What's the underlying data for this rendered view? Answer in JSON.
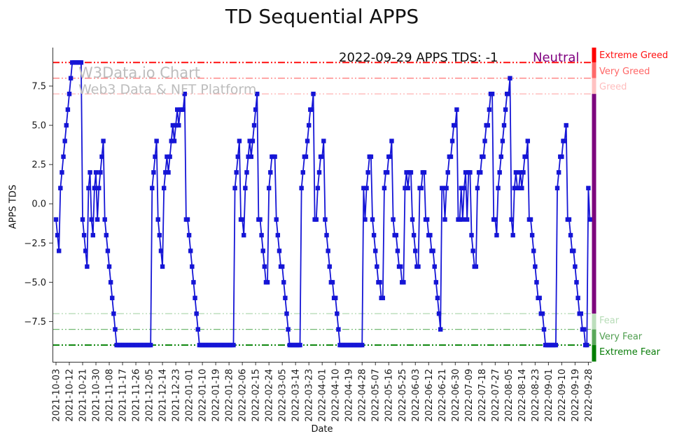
{
  "title": "TD Sequential APPS",
  "watermark": {
    "line1": "W3Data.io Chart",
    "line2": "Web3 Data & NFT Platform"
  },
  "annotation": {
    "date_text": "2022-09-29 APPS TDS: -1",
    "status": "Neutral",
    "status_color": "#800080"
  },
  "chart_data": {
    "type": "line",
    "title": "TD Sequential APPS",
    "xlabel": "Date",
    "ylabel": "APPS TDS",
    "start_date": "2021-10-03",
    "end_date": "2022-09-29",
    "marker": "square",
    "line_color": "#1515d6",
    "grid": false,
    "ylim": [
      -10,
      9.9
    ],
    "y_ticks": [
      {
        "value": 7.5,
        "label": "7.5"
      },
      {
        "value": 5.0,
        "label": "5.0"
      },
      {
        "value": 2.5,
        "label": "2.5"
      },
      {
        "value": 0.0,
        "label": "0.0"
      },
      {
        "value": -2.5,
        "label": "−2.5"
      },
      {
        "value": -5.0,
        "label": "−5.0"
      },
      {
        "value": -7.5,
        "label": "−7.5"
      }
    ],
    "x_tick_every_days": 9,
    "x_tick_labels": [
      "2021-10-03",
      "2021-10-12",
      "2021-10-21",
      "2021-10-30",
      "2021-11-08",
      "2021-11-17",
      "2021-11-26",
      "2021-12-05",
      "2021-12-14",
      "2021-12-23",
      "2022-01-01",
      "2022-01-10",
      "2022-01-19",
      "2022-01-28",
      "2022-02-06",
      "2022-02-15",
      "2022-02-24",
      "2022-03-05",
      "2022-03-14",
      "2022-03-23",
      "2022-04-01",
      "2022-04-10",
      "2022-04-19",
      "2022-04-28",
      "2022-05-07",
      "2022-05-16",
      "2022-05-25",
      "2022-06-03",
      "2022-06-12",
      "2022-06-21",
      "2022-06-30",
      "2022-07-09",
      "2022-07-18",
      "2022-07-27",
      "2022-08-05",
      "2022-08-14",
      "2022-08-23",
      "2022-09-01",
      "2022-09-10",
      "2022-09-19",
      "2022-09-28"
    ],
    "thresholds": [
      {
        "value": 9,
        "label": "Extreme Greed",
        "color": "#ff0000",
        "opacity": 1.0,
        "label_color": "#ff1111"
      },
      {
        "value": 8,
        "label": "Very Greed",
        "color": "#ff0000",
        "opacity": 0.55,
        "label_color": "#ff6666"
      },
      {
        "value": 7,
        "label": "Greed",
        "color": "#ff0000",
        "opacity": 0.28,
        "label_color": "#ffbdbd"
      },
      {
        "value": -7,
        "label": "Fear",
        "color": "#008000",
        "opacity": 0.28,
        "label_color": "#b7dcb7"
      },
      {
        "value": -8,
        "label": "Very Fear",
        "color": "#008000",
        "opacity": 0.55,
        "label_color": "#4f9e4f"
      },
      {
        "value": -9,
        "label": "Extreme Fear",
        "color": "#008000",
        "opacity": 1.0,
        "label_color": "#0a7d0a"
      }
    ],
    "values": [
      -1,
      -2,
      -3,
      1,
      2,
      3,
      4,
      5,
      6,
      7,
      8,
      9,
      9,
      9,
      9,
      9,
      9,
      9,
      -1,
      -2,
      -3,
      -4,
      1,
      2,
      -1,
      -2,
      1,
      2,
      -1,
      1,
      2,
      3,
      4,
      -1,
      -2,
      -3,
      -4,
      -5,
      -6,
      -7,
      -8,
      -9,
      -9,
      -9,
      -9,
      -9,
      -9,
      -9,
      -9,
      -9,
      -9,
      -9,
      -9,
      -9,
      -9,
      -9,
      -9,
      -9,
      -9,
      -9,
      -9,
      -9,
      -9,
      -9,
      -9,
      1,
      2,
      3,
      4,
      -1,
      -2,
      -3,
      -4,
      1,
      2,
      3,
      2,
      3,
      4,
      5,
      4,
      5,
      6,
      5,
      6,
      6,
      6,
      7,
      -1,
      -1,
      -2,
      -3,
      -4,
      -5,
      -6,
      -7,
      -8,
      -9,
      -9,
      -9,
      -9,
      -9,
      -9,
      -9,
      -9,
      -9,
      -9,
      -9,
      -9,
      -9,
      -9,
      -9,
      -9,
      -9,
      -9,
      -9,
      -9,
      -9,
      -9,
      -9,
      -9,
      1,
      2,
      3,
      4,
      -1,
      -1,
      -2,
      1,
      2,
      3,
      4,
      3,
      4,
      5,
      6,
      7,
      -1,
      -1,
      -2,
      -3,
      -4,
      -5,
      -5,
      1,
      2,
      3,
      3,
      3,
      -1,
      -2,
      -3,
      -4,
      -4,
      -5,
      -6,
      -7,
      -8,
      -9,
      -9,
      -9,
      -9,
      -9,
      -9,
      -9,
      -9,
      1,
      2,
      3,
      3,
      4,
      5,
      6,
      6,
      7,
      -1,
      -1,
      1,
      2,
      3,
      3,
      4,
      -1,
      -2,
      -3,
      -4,
      -5,
      -5,
      -6,
      -6,
      -7,
      -8,
      -9,
      -9,
      -9,
      -9,
      -9,
      -9,
      -9,
      -9,
      -9,
      -9,
      -9,
      -9,
      -9,
      -9,
      -9,
      -9,
      1,
      -1,
      1,
      2,
      3,
      3,
      -1,
      -2,
      -3,
      -4,
      -5,
      -5,
      -6,
      -6,
      1,
      2,
      2,
      3,
      3,
      4,
      -1,
      -2,
      -2,
      -3,
      -4,
      -4,
      -5,
      -5,
      1,
      2,
      1,
      2,
      2,
      -1,
      -2,
      -3,
      -4,
      -4,
      1,
      1,
      2,
      2,
      -1,
      -1,
      -2,
      -2,
      -3,
      -3,
      -4,
      -5,
      -6,
      -7,
      -8,
      1,
      1,
      -1,
      1,
      2,
      3,
      3,
      4,
      5,
      5,
      6,
      -1,
      -1,
      1,
      -1,
      1,
      2,
      -1,
      2,
      2,
      -2,
      -3,
      -4,
      -4,
      1,
      2,
      2,
      3,
      3,
      4,
      5,
      5,
      6,
      7,
      7,
      -1,
      -1,
      -2,
      1,
      2,
      3,
      4,
      5,
      6,
      7,
      7,
      8,
      -1,
      -2,
      1,
      2,
      1,
      1,
      2,
      1,
      2,
      3,
      3,
      4,
      -1,
      -1,
      -2,
      -3,
      -4,
      -5,
      -6,
      -6,
      -7,
      -7,
      -8,
      -9,
      -9,
      -9,
      -9,
      -9,
      -9,
      -9,
      -9,
      1,
      2,
      3,
      3,
      4,
      4,
      5,
      -1,
      -1,
      -2,
      -3,
      -3,
      -4,
      -5,
      -6,
      -7,
      -7,
      -8,
      -8,
      -9,
      -9,
      1,
      -1
    ]
  },
  "zone_bar": {
    "segments": [
      {
        "label": "Extreme Greed",
        "v0": 9,
        "v1": 9.95,
        "color": "#fe0000"
      },
      {
        "label": "Very Greed",
        "v0": 8,
        "v1": 9,
        "color": "#ff6a6a"
      },
      {
        "label": "Greed",
        "v0": 7,
        "v1": 8,
        "color": "#ffc2c2"
      },
      {
        "label": "Neutral",
        "v0": -7,
        "v1": 7,
        "color": "#7d077d"
      },
      {
        "label": "Fear",
        "v0": -8,
        "v1": -7,
        "color": "#bcdebc"
      },
      {
        "label": "Very Fear",
        "v0": -9,
        "v1": -8,
        "color": "#5aa85a"
      },
      {
        "label": "Extreme Fear",
        "v0": -10.05,
        "v1": -9,
        "color": "#007d00"
      }
    ]
  }
}
